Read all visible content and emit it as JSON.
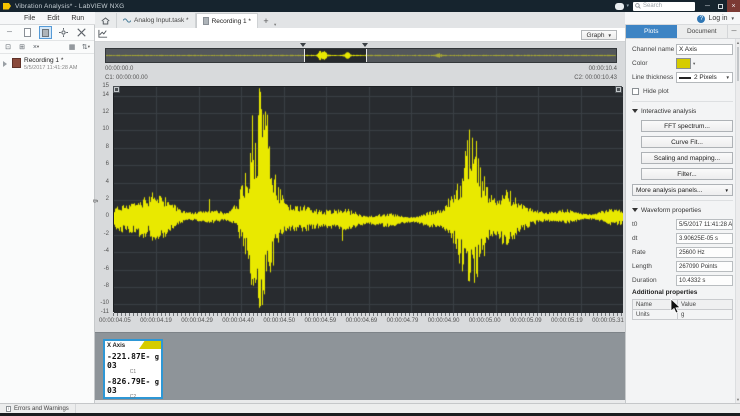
{
  "window": {
    "title": "Vibration Analysis* - LabVIEW NXG",
    "search_placeholder": "Search",
    "login_label": "Log in"
  },
  "menu": {
    "items": [
      "File",
      "Edit",
      "Run",
      "Data",
      "View",
      "Help"
    ]
  },
  "left_panel": {
    "recording_name": "Recording 1 *",
    "recording_date": "5/5/2017 11:41:28 AM"
  },
  "tabs": {
    "analog_tab": "Analog Input.task *",
    "recording_tab": "Recording 1 *",
    "plus_tab": "+"
  },
  "toolbar": {
    "graph_label": "Graph"
  },
  "overview": {
    "start_label": "00:00:00.0",
    "end_label": "00:00:10.4",
    "c1_label": "C1: 00:00:00.00",
    "c2_label": "C2: 00:00:10.43"
  },
  "legend": {
    "title": "X Axis",
    "rows": [
      {
        "value": "-221.87E-03",
        "unit": "g",
        "cursor": "C1"
      },
      {
        "value": "-826.79E-03",
        "unit": "g",
        "cursor": "C2"
      }
    ],
    "footer_unit": "g"
  },
  "right_panel": {
    "plots_tab": "Plots",
    "document_tab": "Document",
    "channel_name_label": "Channel name",
    "channel_name_value": "X Axis",
    "color_label": "Color",
    "color_value": "#d6cc00",
    "line_thickness_label": "Line thickness",
    "line_thickness_value": "2 Pixels",
    "hide_plot_label": "Hide plot",
    "interactive_analysis": {
      "title": "Interactive analysis",
      "buttons": [
        "FFT spectrum...",
        "Curve Fit...",
        "Scaling and mapping...",
        "Filter..."
      ],
      "more_label": "More analysis panels..."
    },
    "waveform_properties": {
      "title": "Waveform properties",
      "rows": [
        {
          "label": "t0",
          "value": "5/5/2017 11:41:28 AM"
        },
        {
          "label": "dt",
          "value": "3.90625E-05 s"
        },
        {
          "label": "Rate",
          "value": "25600 Hz"
        },
        {
          "label": "Length",
          "value": "267090 Points"
        },
        {
          "label": "Duration",
          "value": "10.4332 s"
        }
      ]
    },
    "additional_properties": {
      "title": "Additional properties",
      "headers": [
        "Name",
        "Value"
      ],
      "rows": [
        [
          "Units",
          "g"
        ]
      ]
    }
  },
  "status_bar": {
    "label": "Errors and Warnings"
  },
  "chart_data": {
    "type": "line",
    "title": "",
    "ylabel": "g",
    "ylim": [
      -11,
      15
    ],
    "y_ticks": [
      15,
      14,
      12,
      10,
      8,
      6,
      4,
      2,
      0,
      -2,
      -4,
      -6,
      -8,
      -10,
      -11
    ],
    "x_ticks": [
      "00:00:04.05",
      "00:00:04.19",
      "00:00:04.29",
      "00:00:04.40",
      "00:00:04.50",
      "00:00:04.59",
      "00:00:04.69",
      "00:00:04.79",
      "00:00:04.90",
      "00:00:05.00",
      "00:00:05.09",
      "00:00:05.19",
      "00:00:05.31"
    ],
    "x_range_s": [
      4.05,
      5.31
    ],
    "grid": true,
    "plot_background": "#282b2f",
    "series": [
      {
        "name": "X Axis",
        "color": "#e9e900",
        "baseline_amplitude_g": 1.25,
        "bursts": [
          {
            "t_s": 4.145,
            "width_s": 0.045,
            "peak_g": 2.9,
            "trough_g": -2.9
          },
          {
            "t_s": 4.41,
            "width_s": 0.04,
            "peak_g": 15.0,
            "trough_g": -11.0
          },
          {
            "t_s": 4.93,
            "width_s": 0.04,
            "peak_g": 10.2,
            "trough_g": -8.0
          },
          {
            "t_s": 5.02,
            "width_s": 0.03,
            "peak_g": 3.2,
            "trough_g": -3.4
          }
        ],
        "spikes": [
          {
            "t_s": 4.615,
            "g": -2.7
          },
          {
            "t_s": 4.285,
            "g": 2.1
          }
        ]
      }
    ],
    "cursors": [
      {
        "name": "C1",
        "time": "00:00:00.00",
        "value_g": -0.22187
      },
      {
        "name": "C2",
        "time": "00:00:10.43",
        "value_g": -0.82679
      }
    ],
    "overview": {
      "duration_s": 10.43,
      "selection_s": [
        4.05,
        5.31
      ],
      "baseline_amplitude_g": 1.0,
      "bursts": [
        {
          "t_s": 4.38,
          "h_g": 9
        },
        {
          "t_s": 4.47,
          "h_g": 6
        },
        {
          "t_s": 4.93,
          "h_g": 6
        },
        {
          "t_s": 6.8,
          "h_g": 3.5
        }
      ]
    }
  }
}
